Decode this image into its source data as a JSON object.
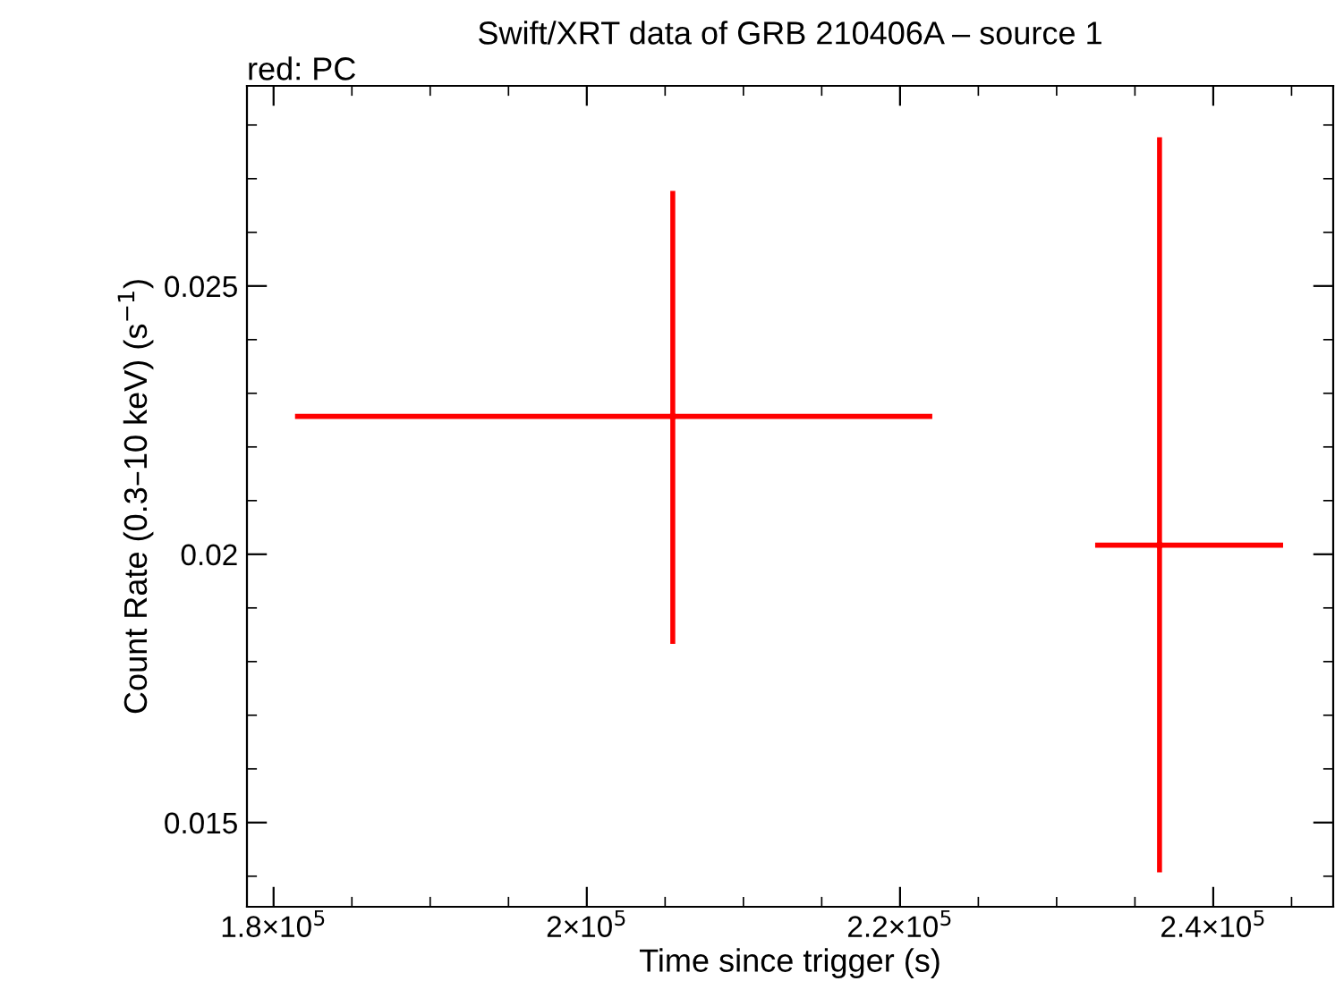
{
  "chart_data": {
    "type": "scatter",
    "title": "Swift/XRT data of GRB 210406A – source 1",
    "subtitle": "red: PC",
    "xlabel": "Time since trigger (s)",
    "ylabel": "Count Rate (0.3–10 keV) (s$^{−1}$)",
    "series": [
      {
        "color": "#ff0000",
        "x": [
          205490,
          236570
        ],
        "values": [
          0.02257,
          0.02017
        ],
        "errors": [
          [
            0.01833,
            0.02677
          ],
          [
            0.01407,
            0.02777
          ]
        ],
        "xerrors": [
          [
            181370,
            222060
          ],
          [
            232460,
            244460
          ]
        ]
      }
    ],
    "marker": "none",
    "grid": false,
    "legend": false,
    "xlim": [
      178300,
      247660
    ],
    "ylim": [
      0.01343,
      0.02873
    ],
    "xticks": [
      {
        "value": 180000,
        "label": "1.8×10$^{5}$"
      },
      {
        "value": 200000,
        "label": "2×10$^{5}$"
      },
      {
        "value": 220000,
        "label": "2.2×10$^{5}$"
      },
      {
        "value": 240000,
        "label": "2.4×10$^{5}$"
      }
    ],
    "yticks": [
      {
        "value": 0.015,
        "label": "0.015"
      },
      {
        "value": 0.02,
        "label": "0.02"
      },
      {
        "value": 0.025,
        "label": "0.025"
      }
    ]
  }
}
